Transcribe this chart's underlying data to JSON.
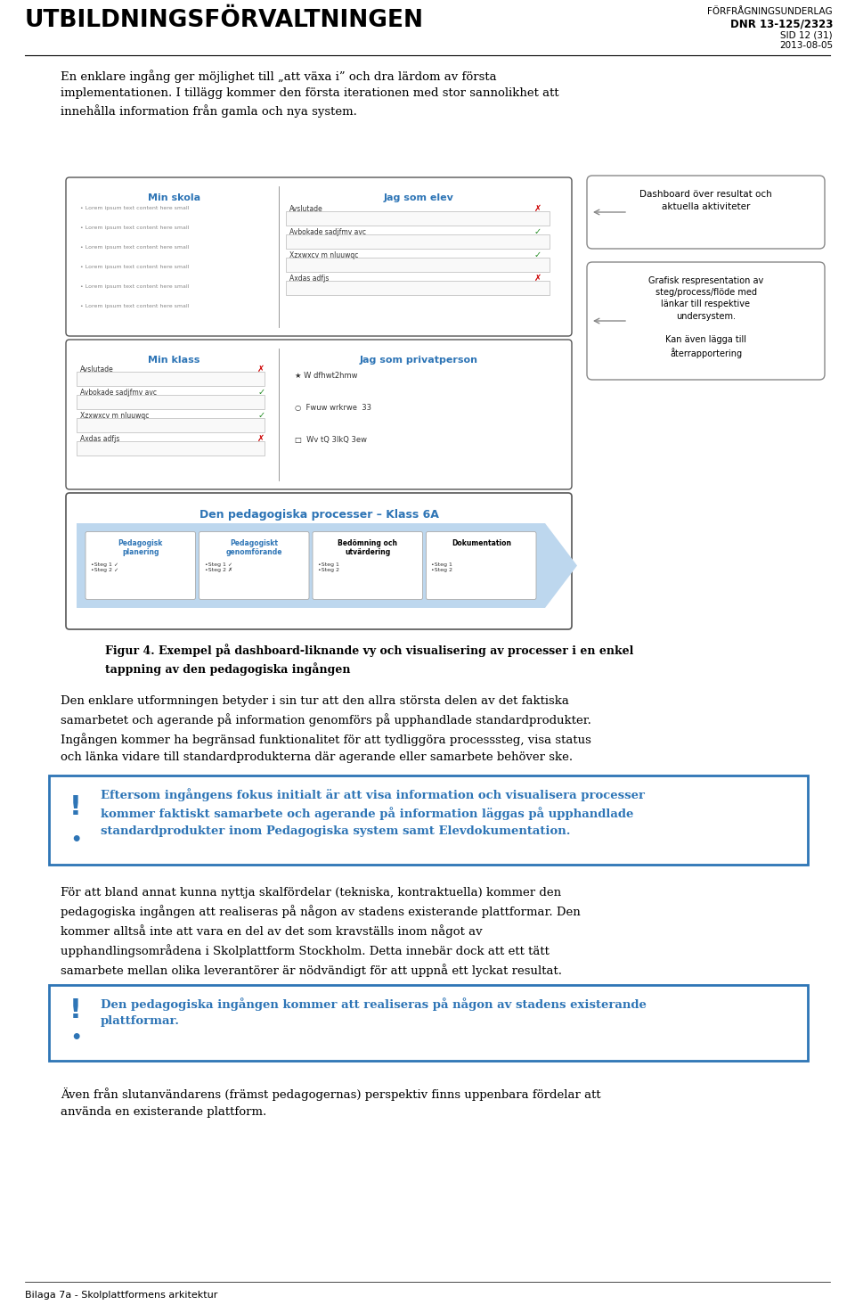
{
  "bg_color": "#ffffff",
  "header_left": "UTBILDNINGSFÖRVALTNINGEN",
  "header_right_line1": "FÖRFRÅGNINGSUNDERLAG",
  "header_right_line2": "DNR 13-125/2323",
  "header_right_line3": "SID 12 (31)",
  "header_right_line4": "2013-08-05",
  "footer_text": "Bilaga 7a - Skolplattformens arkitektur",
  "intro_text": "En enklare ingång ger möjlighet till „att växa i” och dra lärdom av första\nimplementationen. I tillägg kommer den första iterationen med stor sannolikhet att\ninnehålla information från gamla och nya system.",
  "fig_caption_bold": "Figur 4. Exempel på dashboard-liknande vy och visualisering av processer i en enkel\ntappning av den pedagogiska ingången",
  "body_text1": "Den enklare utformningen betyder i sin tur att den allra största delen av det faktiska\nsamarbetet och agerande på information genomförs på upphandlade standardprodukter.\nIngången kommer ha begränsad funktionalitet för att tydliggöra processsteg, visa status\noch länka vidare till standardprodukterna där agerande eller samarbete behöver ske.",
  "callout1_text": "Eftersom ingångens fokus initialt är att visa information och visualisera processer\nkommer faktiskt samarbete och agerande på information läggas på upphandlade\nstandardprodukter inom Pedagogiska system samt Elevdokumentation.",
  "body_text2": "För att bland annat kunna nyttja skalfördelar (tekniska, kontraktuella) kommer den\npedagogiska ingången att realiseras på någon av stadens existerande plattformar. Den\nkommer alltså inte att vara en del av det som kravställs inom något av\nupphandlingsområdena i Skolplattform Stockholm. Detta innebär dock att ett tätt\nsamarbete mellan olika leverantörer är nödvändigt för att uppnå ett lyckat resultat.",
  "callout2_text": "Den pedagogiska ingången kommer att realiseras på någon av stadens existerande\nplattformar.",
  "body_text3": "Även från slutanvändarens (främst pedagogernas) perspektiv finns uppenbara fördelar att\nanvända en existerande plattform.",
  "callout_border_color": "#2E75B6",
  "callout_bg_color": "#ffffff",
  "callout_text_color": "#2E75B6",
  "header_line_color": "#000000",
  "figure_border_color": "#888888",
  "dash_callout_text": "Dashboard över resultat och\naktuella aktiviteter",
  "graf_callout_text": "Grafisk respresentation av\nsteg/process/flöde med\nlänkar till respektive\nundersystem.\n\nKan även lägga till\nåterrapportering",
  "min_skola_label": "Min skola",
  "jag_som_elev_label": "Jag som elev",
  "min_klass_label": "Min klass",
  "jag_privatperson_label": "Jag som privatperson",
  "ped_process_label": "Den pedagogiska processer – Klass 6A",
  "steps": [
    "Pedagogisk\nplanering",
    "Pedagogiskt\ngenomförande",
    "Bedömning och\nutvärdering",
    "Dokumentation"
  ],
  "steps_sub": [
    "•Steg 1 ✓\n•Steg 2 ✓",
    "•Steg 1 ✓\n•Steg 2 ✗",
    "•Steg 1\n•Steg 2",
    "•Steg 1\n•Steg 2"
  ]
}
